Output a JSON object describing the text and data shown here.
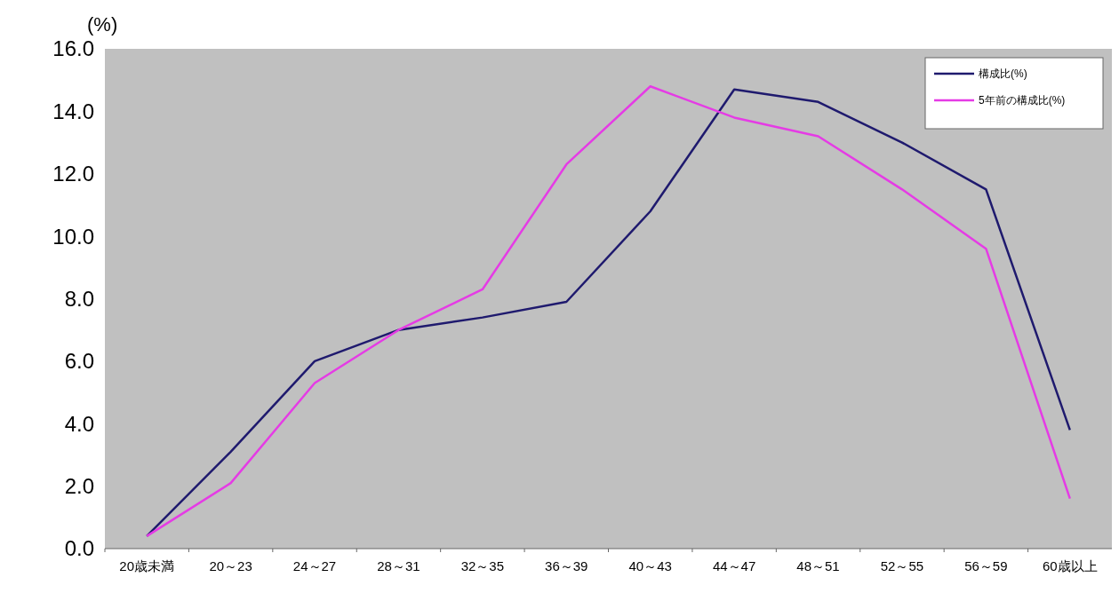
{
  "chart_data": {
    "type": "line",
    "ylabel": "(%)",
    "categories": [
      "20歳未満",
      "20～23",
      "24～27",
      "28～31",
      "32～35",
      "36～39",
      "40～43",
      "44～47",
      "48～51",
      "52～55",
      "56～59",
      "60歳以上"
    ],
    "series": [
      {
        "name": "構成比(%)",
        "color": "#1f1a6e",
        "values": [
          0.4,
          3.1,
          6.0,
          7.0,
          7.4,
          7.9,
          10.8,
          14.7,
          14.3,
          13.0,
          11.5,
          3.8
        ]
      },
      {
        "name": "5年前の構成比(%)",
        "color": "#e53be5",
        "values": [
          0.4,
          2.1,
          5.3,
          7.0,
          8.3,
          12.3,
          14.8,
          13.8,
          13.2,
          11.5,
          9.6,
          1.6
        ]
      }
    ],
    "ylim": [
      0,
      16
    ],
    "yticks": [
      {
        "value": 0,
        "label": "0.0"
      },
      {
        "value": 2,
        "label": "2.0"
      },
      {
        "value": 4,
        "label": "4.0"
      },
      {
        "value": 6,
        "label": "6.0"
      },
      {
        "value": 8,
        "label": "8.0"
      },
      {
        "value": 10,
        "label": "10.0"
      },
      {
        "value": 12,
        "label": "12.0"
      },
      {
        "value": 14,
        "label": "14.0"
      },
      {
        "value": 16,
        "label": "16.0"
      }
    ],
    "legend": "top right",
    "marker": "none",
    "line_style": "solid"
  }
}
